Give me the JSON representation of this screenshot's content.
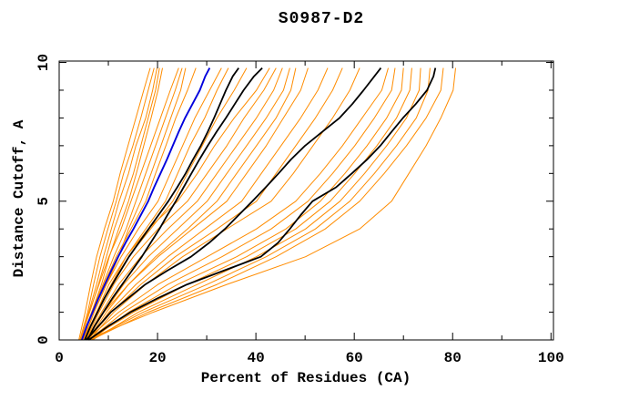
{
  "window": {
    "title": "S0987-D2"
  },
  "chart_data": {
    "type": "line",
    "title": "S0987-D2",
    "xlabel": "Percent of Residues (CA)",
    "ylabel": "Distance Cutoff, A",
    "xlim": [
      0,
      100.5
    ],
    "ylim": [
      0,
      10.05
    ],
    "grid": false,
    "legend": "none",
    "x_major_ticks": [
      0,
      20,
      40,
      60,
      80,
      100
    ],
    "x_minor_ticks": [
      10,
      30,
      50,
      70,
      90
    ],
    "x_tick_labels": [
      "0",
      "20",
      "40",
      "60",
      "80",
      "100"
    ],
    "y_major_ticks": [
      0,
      5,
      10
    ],
    "y_minor_ticks": [
      1,
      2,
      3,
      4,
      6,
      7,
      8,
      9
    ],
    "y_tick_labels": [
      "0",
      "5",
      "10"
    ],
    "colors": {
      "models": "#ff8c00",
      "selected": "#000000",
      "reference": "#0000dd",
      "axis": "#000000",
      "background": "#ffffff"
    },
    "cutoffs_coarse": [
      0,
      1,
      2,
      3,
      4,
      5,
      6,
      7,
      8,
      9,
      9.8
    ],
    "cutoffs_fine": [
      0,
      0.5,
      1,
      1.5,
      2,
      2.5,
      3,
      3.5,
      4,
      4.5,
      5,
      5.5,
      6,
      6.5,
      7,
      7.5,
      8,
      8.5,
      9,
      9.5,
      9.8
    ],
    "series": [
      {
        "name": "model-orange-01",
        "color": "orange",
        "grid": "coarse",
        "percents": [
          4.0,
          5.3,
          6.4,
          7.6,
          9.2,
          11.0,
          12.4,
          14.0,
          15.6,
          17.2,
          18.5
        ]
      },
      {
        "name": "model-orange-02",
        "color": "orange",
        "grid": "coarse",
        "percents": [
          4.2,
          5.8,
          7.0,
          8.3,
          9.9,
          11.6,
          13.1,
          15.0,
          16.6,
          18.1,
          19.3
        ]
      },
      {
        "name": "model-orange-03",
        "color": "orange",
        "grid": "coarse",
        "percents": [
          4.4,
          6.0,
          7.6,
          9.0,
          10.6,
          12.2,
          14.1,
          15.6,
          17.6,
          19.0,
          19.9
        ]
      },
      {
        "name": "model-orange-04",
        "color": "orange",
        "grid": "coarse",
        "percents": [
          4.3,
          6.2,
          8.0,
          9.6,
          11.2,
          13.2,
          15.1,
          16.6,
          18.1,
          19.6,
          20.4
        ]
      },
      {
        "name": "model-orange-05",
        "color": "orange",
        "grid": "coarse",
        "percents": [
          4.6,
          6.6,
          8.6,
          10.2,
          12.1,
          14.1,
          15.7,
          17.2,
          18.7,
          20.1,
          21.0
        ]
      },
      {
        "name": "model-orange-06",
        "color": "orange",
        "grid": "coarse",
        "percents": [
          4.4,
          6.1,
          8.1,
          10.1,
          12.6,
          14.6,
          16.6,
          18.6,
          20.6,
          22.6,
          24.3
        ]
      },
      {
        "name": "model-orange-07",
        "color": "orange",
        "grid": "coarse",
        "percents": [
          4.8,
          6.6,
          8.9,
          11.1,
          13.6,
          15.6,
          17.6,
          19.6,
          21.6,
          23.6,
          25.0
        ]
      },
      {
        "name": "model-orange-08",
        "color": "orange",
        "grid": "coarse",
        "percents": [
          5.0,
          7.1,
          9.6,
          12.1,
          14.1,
          16.6,
          18.7,
          20.7,
          22.7,
          24.7,
          25.7
        ]
      },
      {
        "name": "model-orange-09",
        "color": "orange",
        "grid": "coarse",
        "percents": [
          4.5,
          6.6,
          9.1,
          11.6,
          14.6,
          17.6,
          19.6,
          21.7,
          23.7,
          26.1,
          27.8
        ]
      },
      {
        "name": "model-orange-10",
        "color": "orange",
        "grid": "coarse",
        "percents": [
          4.8,
          7.1,
          9.6,
          12.6,
          16.1,
          20.1,
          22.6,
          25.1,
          27.6,
          30.6,
          33.0
        ]
      },
      {
        "name": "model-orange-11",
        "color": "orange",
        "grid": "coarse",
        "percents": [
          5.0,
          7.6,
          10.6,
          13.6,
          17.6,
          21.6,
          24.1,
          26.6,
          29.6,
          32.1,
          34.4
        ]
      },
      {
        "name": "model-orange-12",
        "color": "orange",
        "grid": "coarse",
        "percents": [
          5.0,
          7.6,
          10.6,
          14.1,
          18.6,
          23.1,
          26.1,
          29.1,
          32.1,
          35.6,
          38.1
        ]
      },
      {
        "name": "model-orange-13",
        "color": "orange",
        "grid": "coarse",
        "percents": [
          5.2,
          7.6,
          10.1,
          13.6,
          18.1,
          24.1,
          28.1,
          31.6,
          35.6,
          40.1,
          42.8
        ]
      },
      {
        "name": "model-orange-14",
        "color": "orange",
        "grid": "coarse",
        "percents": [
          5.4,
          8.1,
          11.1,
          15.1,
          20.1,
          26.1,
          30.1,
          34.1,
          37.6,
          41.6,
          44.1
        ]
      },
      {
        "name": "model-orange-15",
        "color": "orange",
        "grid": "coarse",
        "percents": [
          5.5,
          8.6,
          12.1,
          16.6,
          22.1,
          28.1,
          32.1,
          36.1,
          40.1,
          43.6,
          45.4
        ]
      },
      {
        "name": "model-orange-16",
        "color": "orange",
        "grid": "coarse",
        "percents": [
          5.6,
          9.1,
          13.1,
          18.1,
          24.1,
          30.1,
          34.1,
          38.1,
          42.1,
          45.6,
          46.9
        ]
      },
      {
        "name": "model-orange-17",
        "color": "orange",
        "grid": "coarse",
        "percents": [
          5.8,
          9.6,
          14.1,
          19.6,
          26.1,
          32.1,
          36.1,
          40.1,
          44.1,
          47.1,
          48.1
        ]
      },
      {
        "name": "model-orange-18",
        "color": "orange",
        "grid": "coarse",
        "percents": [
          5.5,
          9.1,
          14.1,
          20.1,
          27.1,
          34.1,
          38.1,
          42.1,
          45.6,
          49.1,
          50.6
        ]
      },
      {
        "name": "model-orange-19",
        "color": "orange",
        "grid": "coarse",
        "percents": [
          6.0,
          10.1,
          15.6,
          22.1,
          29.6,
          37.1,
          41.1,
          45.1,
          49.1,
          52.6,
          54.6
        ]
      },
      {
        "name": "model-orange-20",
        "color": "orange",
        "grid": "coarse",
        "percents": [
          5.8,
          10.6,
          16.6,
          23.6,
          32.1,
          40.1,
          44.1,
          48.1,
          52.1,
          55.6,
          57.6
        ]
      },
      {
        "name": "model-orange-21",
        "color": "orange",
        "grid": "coarse",
        "percents": [
          6.2,
          11.1,
          17.6,
          25.1,
          34.1,
          43.1,
          47.6,
          51.6,
          55.6,
          59.1,
          61.1
        ]
      },
      {
        "name": "model-orange-22",
        "color": "orange",
        "grid": "coarse",
        "percents": [
          5.5,
          12.1,
          20.1,
          30.1,
          40.1,
          48.1,
          53.1,
          57.6,
          61.6,
          65.6,
          66.9
        ]
      },
      {
        "name": "model-orange-23",
        "color": "orange",
        "grid": "coarse",
        "percents": [
          6.0,
          13.1,
          22.1,
          33.1,
          43.1,
          50.6,
          55.6,
          60.1,
          64.1,
          67.6,
          68.3
        ]
      },
      {
        "name": "model-orange-24",
        "color": "orange",
        "grid": "coarse",
        "percents": [
          6.5,
          14.1,
          24.1,
          36.1,
          46.1,
          53.1,
          58.1,
          62.6,
          66.6,
          69.6,
          70.0
        ]
      },
      {
        "name": "model-orange-25",
        "color": "orange",
        "grid": "coarse",
        "percents": [
          5.8,
          15.1,
          26.1,
          38.1,
          48.1,
          55.1,
          60.1,
          64.6,
          68.6,
          71.3,
          71.7
        ]
      },
      {
        "name": "model-orange-26",
        "color": "orange",
        "grid": "coarse",
        "percents": [
          6.8,
          16.1,
          28.1,
          40.1,
          50.1,
          57.1,
          62.1,
          66.6,
          70.6,
          73.2,
          73.5
        ]
      },
      {
        "name": "model-orange-27",
        "color": "orange",
        "grid": "coarse",
        "percents": [
          6.2,
          17.1,
          30.1,
          42.1,
          52.1,
          59.1,
          64.1,
          68.6,
          72.6,
          75.0,
          75.4
        ]
      },
      {
        "name": "model-orange-28",
        "color": "orange",
        "grid": "coarse",
        "percents": [
          6.5,
          18.1,
          32.1,
          44.1,
          54.1,
          61.1,
          66.1,
          70.6,
          74.6,
          77.6,
          78.1
        ]
      },
      {
        "name": "model-orange-29",
        "color": "orange",
        "grid": "coarse",
        "percents": [
          5.5,
          19.1,
          34.1,
          50.1,
          61.1,
          67.6,
          71.1,
          74.6,
          77.6,
          80.1,
          80.6
        ]
      },
      {
        "name": "model-black-1",
        "color": "black",
        "grid": "fine",
        "percents": [
          5.2,
          6.4,
          7.8,
          9.2,
          10.8,
          12.5,
          14.2,
          16.2,
          18.2,
          20.2,
          22.2,
          24.0,
          25.7,
          27.2,
          28.8,
          30.2,
          31.5,
          32.7,
          33.9,
          35.3,
          36.5
        ]
      },
      {
        "name": "model-black-2",
        "color": "black",
        "grid": "fine",
        "percents": [
          5.8,
          7.2,
          9.0,
          10.8,
          12.8,
          14.8,
          16.8,
          18.6,
          20.4,
          22.0,
          23.7,
          25.3,
          26.9,
          28.5,
          30.2,
          32.0,
          33.9,
          35.7,
          37.5,
          39.6,
          41.3
        ]
      },
      {
        "name": "model-black-3",
        "color": "black",
        "grid": "fine",
        "percents": [
          5.5,
          8.0,
          10.5,
          14.0,
          17.5,
          22.0,
          26.8,
          30.5,
          33.7,
          36.5,
          39.3,
          42.0,
          44.6,
          47.1,
          50.0,
          53.5,
          57.0,
          59.6,
          61.9,
          64.1,
          65.4
        ]
      },
      {
        "name": "model-black-4",
        "color": "black",
        "grid": "fine",
        "percents": [
          6.0,
          10.0,
          14.5,
          20.0,
          26.0,
          33.5,
          41.0,
          44.5,
          46.9,
          49.1,
          51.5,
          56.3,
          59.5,
          62.6,
          65.3,
          67.6,
          69.9,
          72.5,
          74.8,
          76.1,
          76.5
        ]
      },
      {
        "name": "model-blue",
        "color": "blue",
        "grid": "fine",
        "percents": [
          4.6,
          5.6,
          6.8,
          8.0,
          9.3,
          10.6,
          12.0,
          13.5,
          15.1,
          16.6,
          18.1,
          19.3,
          20.6,
          21.9,
          23.1,
          24.3,
          25.6,
          27.1,
          28.6,
          29.7,
          30.6
        ]
      }
    ]
  }
}
